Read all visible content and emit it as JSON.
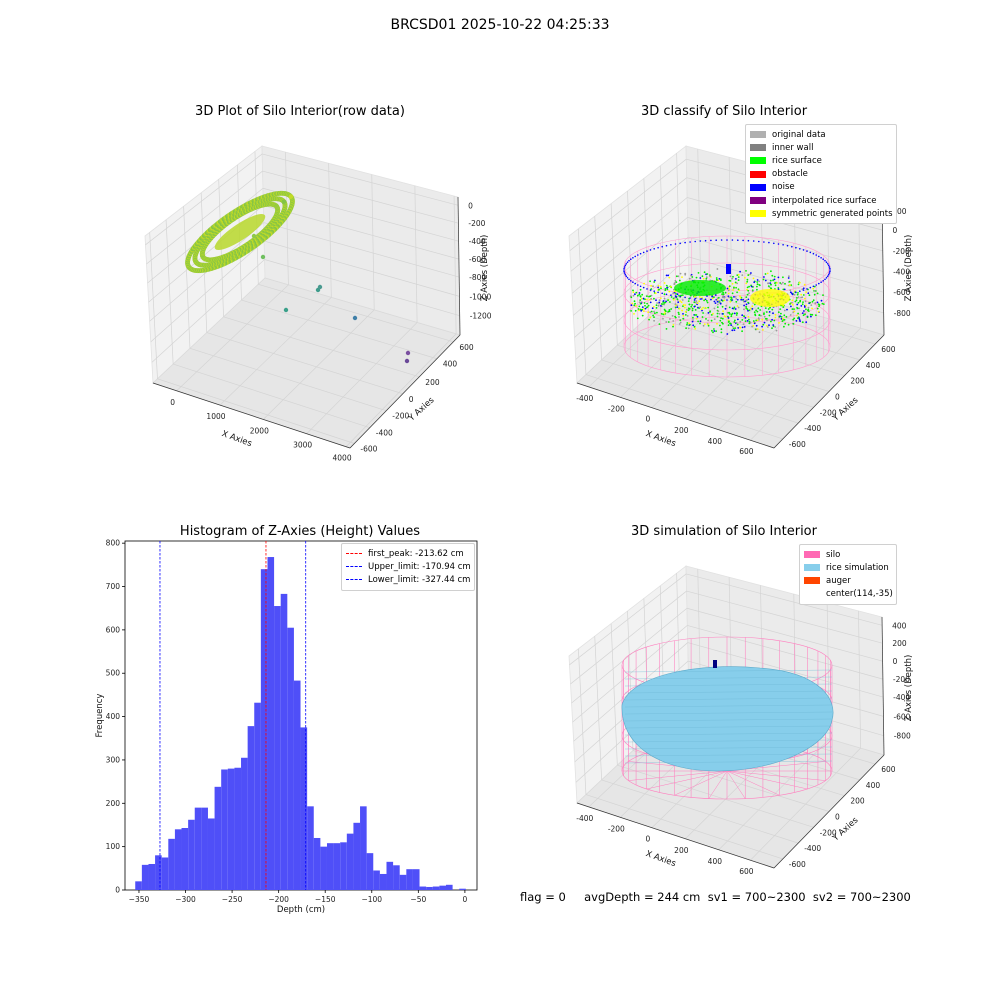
{
  "suptitle": "BRCSD01 2025-10-22 04:25:33",
  "footer": "flag = 0     avgDepth = 244 cm  sv1 = 700~2300  sv2 = 700~2300",
  "colors": {
    "hist_bar": "#4f4ff8",
    "first_peak": "#ff0000",
    "limits": "#0000ff",
    "wire": "#ff69b4",
    "rice_sim": "#87ceeb"
  },
  "chart_data": [
    {
      "type": "scatter3d",
      "title": "3D Plot of Silo Interior(row data)",
      "xlabel": "X Axies",
      "ylabel": "Y Axies",
      "zlabel": "Z Axies (Depth)",
      "xticks": [
        "0",
        "1000",
        "2000",
        "3000",
        "4000"
      ],
      "yticks": [
        "-600",
        "-400",
        "-200",
        "0",
        "200",
        "400",
        "600"
      ],
      "zticks": [
        "0",
        "-200",
        "-400",
        "-600",
        "-800",
        "-1000",
        "-1200"
      ],
      "grid": true,
      "outlier_points": [
        {
          "x": 1650,
          "y": 100,
          "z": -1000
        },
        {
          "x": 1700,
          "y": 150,
          "z": -950
        },
        {
          "x": 1000,
          "y": -150,
          "z": -1150
        },
        {
          "x": 2700,
          "y": 100,
          "z": -1050
        },
        {
          "x": 4200,
          "y": 350,
          "z": -1150
        },
        {
          "x": 4200,
          "y": 350,
          "z": -1200
        }
      ]
    },
    {
      "type": "scatter3d",
      "title": "3D classify of Silo Interior",
      "xlabel": "X Axies",
      "ylabel": "Y Axies",
      "zlabel": "Z Axies (Depth)",
      "xticks": [
        "-400",
        "-200",
        "0",
        "200",
        "400",
        "600"
      ],
      "yticks": [
        "-600",
        "-400",
        "-200",
        "0",
        "200",
        "400",
        "600"
      ],
      "zticks": [
        "200",
        "0",
        "-200",
        "-400",
        "-600",
        "-800"
      ],
      "grid": true,
      "legend_position": "top-right",
      "legend": [
        {
          "label": "original data",
          "color": "#b0b0b0"
        },
        {
          "label": "inner wall",
          "color": "#808080"
        },
        {
          "label": "rice surface",
          "color": "#00ff00"
        },
        {
          "label": "obstacle",
          "color": "#ff0000"
        },
        {
          "label": "noise",
          "color": "#0000ff"
        },
        {
          "label": "interpolated rice surface",
          "color": "#800080"
        },
        {
          "label": "symmetric generated points",
          "color": "#ffff00"
        }
      ]
    },
    {
      "type": "bar",
      "title": "Histogram of Z-Axies (Height) Values",
      "xlabel": "Depth (cm)",
      "ylabel": "Frequency",
      "xlim": [
        -365,
        13
      ],
      "ylim": [
        0,
        805
      ],
      "xticks": [
        -350,
        -300,
        -250,
        -200,
        -150,
        -100,
        -50,
        0
      ],
      "yticks": [
        0,
        100,
        200,
        300,
        400,
        500,
        600,
        700,
        800
      ],
      "bin_start": -354,
      "bin_width": 7.1,
      "values": [
        20,
        58,
        60,
        80,
        75,
        118,
        140,
        143,
        162,
        190,
        190,
        165,
        238,
        278,
        280,
        282,
        305,
        378,
        432,
        740,
        768,
        655,
        683,
        605,
        483,
        375,
        193,
        120,
        100,
        108,
        108,
        110,
        130,
        155,
        193,
        85,
        45,
        37,
        65,
        57,
        35,
        48,
        48,
        8,
        7,
        8,
        10,
        12,
        0,
        3
      ],
      "legend_position": "top-right",
      "lines": [
        {
          "label": "first_peak: -213.62 cm",
          "x": -213.62,
          "color": "#ff0000"
        },
        {
          "label": "Upper_limit: -170.94 cm",
          "x": -170.94,
          "color": "#0000ff"
        },
        {
          "label": "Lower_limit: -327.44 cm",
          "x": -327.44,
          "color": "#0000ff"
        }
      ]
    },
    {
      "type": "surface3d",
      "title": "3D simulation of Silo Interior",
      "xlabel": "X Axies",
      "ylabel": "Y Axies",
      "zlabel": "Z Axies (Depth)",
      "xticks": [
        "-400",
        "-200",
        "0",
        "200",
        "400",
        "600"
      ],
      "yticks": [
        "-600",
        "-400",
        "-200",
        "0",
        "200",
        "400",
        "600"
      ],
      "zticks": [
        "400",
        "200",
        "0",
        "-200",
        "-400",
        "-600",
        "-800"
      ],
      "grid": true,
      "legend_position": "top-right",
      "legend": [
        {
          "label": "silo",
          "color": "#ff69b4"
        },
        {
          "label": "rice simulation",
          "color": "#87ceeb"
        },
        {
          "label": "auger",
          "color": "#ff4500"
        },
        {
          "label": "center(114,-35)",
          "color": ""
        }
      ]
    }
  ]
}
